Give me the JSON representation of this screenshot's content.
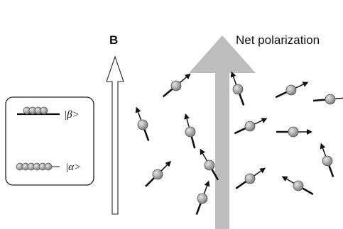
{
  "field_label": "B",
  "net_label": "Net polarization",
  "states": {
    "beta": "|β>",
    "alpha": "|α>"
  },
  "colors": {
    "sphere": "#a6a6a6",
    "sphere_edge": "#555555",
    "stroke": "#111111",
    "net_arrow": "#bdbdbd"
  },
  "icons": {
    "field_arrow": "hollow-up-arrow-icon",
    "net_arrow": "thick-up-arrow-icon",
    "spin": "spin-sphere-icon"
  }
}
